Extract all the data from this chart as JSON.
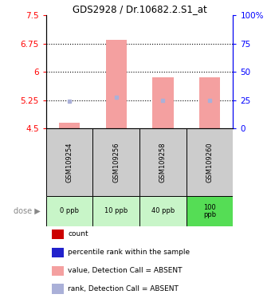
{
  "title": "GDS2928 / Dr.10682.2.S1_at",
  "samples": [
    "GSM109254",
    "GSM109256",
    "GSM109258",
    "GSM109260"
  ],
  "doses": [
    "0 ppb",
    "10 ppb",
    "40 ppb",
    "100\nppb"
  ],
  "dose_colors": [
    "#c8f5c8",
    "#c8f5c8",
    "#c8f5c8",
    "#55dd55"
  ],
  "ylim_left": [
    4.5,
    7.5
  ],
  "ylim_right": [
    0,
    100
  ],
  "yticks_left": [
    4.5,
    5.25,
    6.0,
    6.75,
    7.5
  ],
  "yticks_right": [
    0,
    25,
    50,
    75,
    100
  ],
  "ytick_labels_left": [
    "4.5",
    "5.25",
    "6",
    "6.75",
    "7.5"
  ],
  "ytick_labels_right": [
    "0",
    "25",
    "50",
    "75",
    "100%"
  ],
  "value_absent": [
    4.65,
    6.85,
    5.85,
    5.85
  ],
  "rank_absent": [
    5.22,
    5.32,
    5.24,
    5.24
  ],
  "bar_bottom": 4.5,
  "bar_color_absent": "#f4a0a0",
  "rank_color_absent": "#aab0d8",
  "legend_items": [
    {
      "label": "count",
      "color": "#cc0000"
    },
    {
      "label": "percentile rank within the sample",
      "color": "#2222cc"
    },
    {
      "label": "value, Detection Call = ABSENT",
      "color": "#f4a0a0"
    },
    {
      "label": "rank, Detection Call = ABSENT",
      "color": "#aab0d8"
    }
  ],
  "bar_width": 0.45,
  "sample_bg_color": "#cccccc"
}
